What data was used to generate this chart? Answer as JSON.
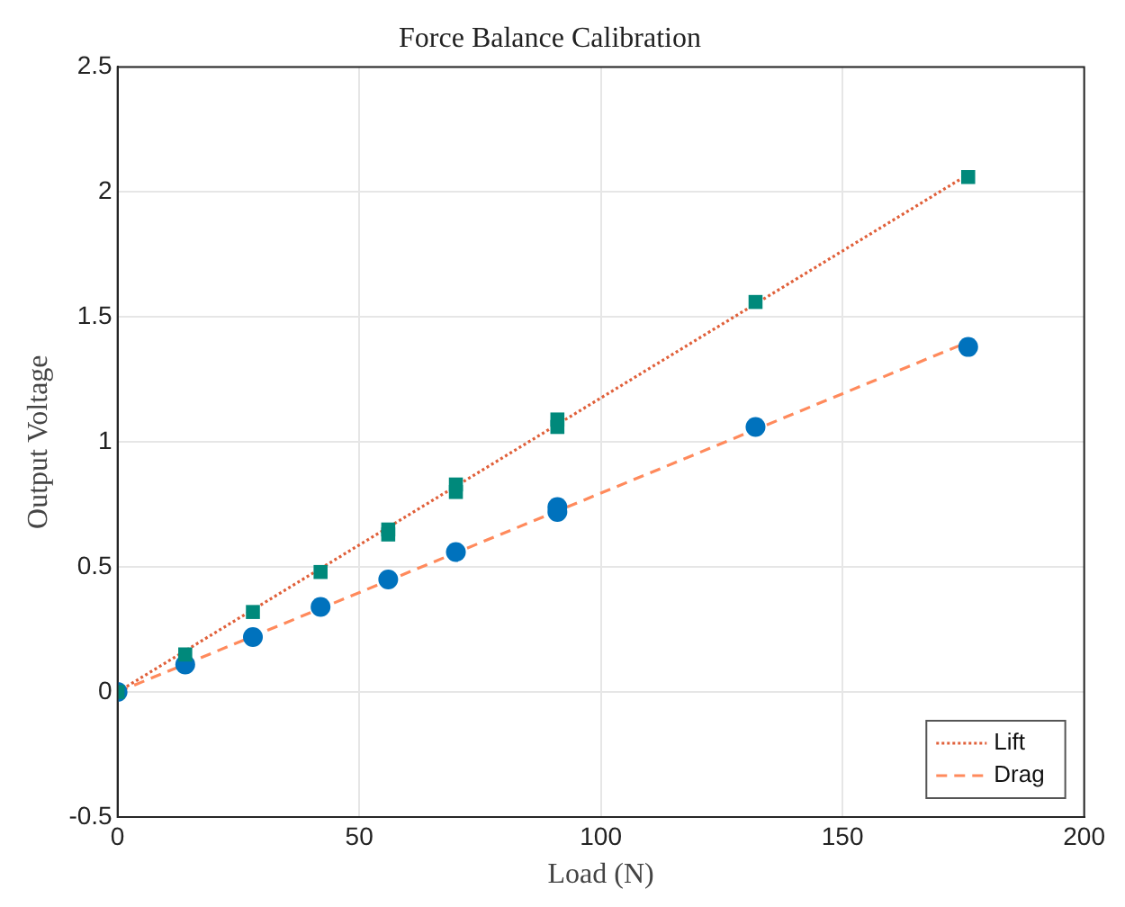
{
  "chart_data": {
    "type": "scatter",
    "title": "Force Balance Calibration",
    "xlabel": "Load (N)",
    "ylabel": "Output Voltage",
    "xlim": [
      0,
      200
    ],
    "xticks": [
      0,
      50,
      100,
      150,
      200
    ],
    "ylim": [
      -0.5,
      2.5
    ],
    "yticks": [
      -0.5,
      0,
      0.5,
      1,
      1.5,
      2,
      2.5
    ],
    "grid": true,
    "legend": "bottom right",
    "series": [
      {
        "type": "scatter",
        "marker": "square",
        "color": "#00897b",
        "x": [
          0,
          14,
          28,
          42,
          56,
          56,
          70,
          70,
          91,
          91,
          132,
          176
        ],
        "values": [
          0,
          0.15,
          0.32,
          0.48,
          0.65,
          0.63,
          0.83,
          0.8,
          1.09,
          1.06,
          1.56,
          2.06
        ]
      },
      {
        "type": "scatter",
        "marker": "circle",
        "color": "#0072bd",
        "x": [
          0,
          14,
          28,
          42,
          56,
          70,
          91,
          91,
          132,
          176
        ],
        "values": [
          0,
          0.11,
          0.22,
          0.34,
          0.45,
          0.56,
          0.72,
          0.74,
          1.06,
          1.38
        ]
      },
      {
        "type": "line",
        "name": "Lift",
        "marker": "none",
        "line_style": "dotted",
        "color": "#e0603a",
        "x": [
          0,
          176
        ],
        "values": [
          0,
          2.07
        ]
      },
      {
        "type": "line",
        "name": "Drag",
        "marker": "none",
        "line_style": "dashed",
        "color": "#ff8a5c",
        "x": [
          0,
          176
        ],
        "values": [
          0,
          1.4
        ]
      }
    ]
  }
}
